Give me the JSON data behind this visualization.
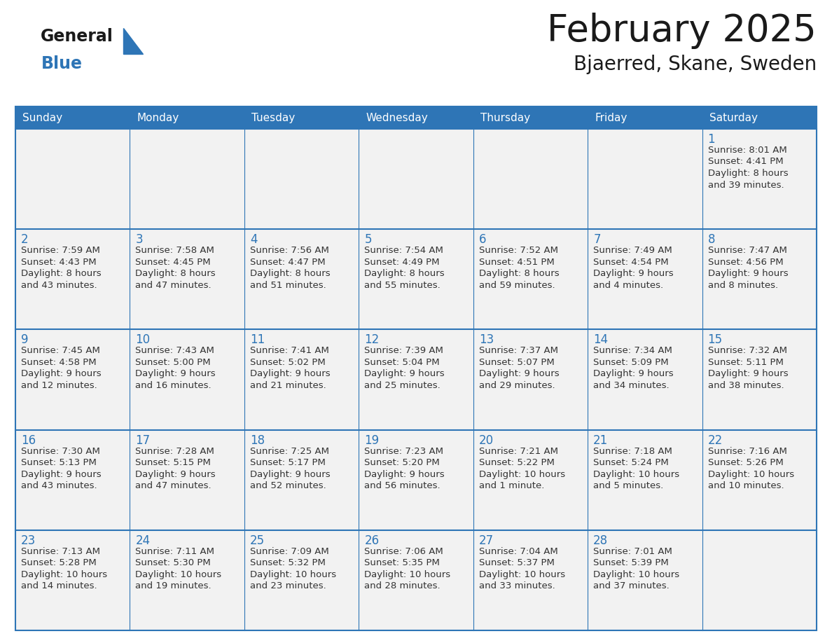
{
  "title": "February 2025",
  "subtitle": "Bjaerred, Skane, Sweden",
  "header_bg": "#2E75B6",
  "header_text_color": "#FFFFFF",
  "cell_bg": "#F2F2F2",
  "border_color": "#2E75B6",
  "day_names": [
    "Sunday",
    "Monday",
    "Tuesday",
    "Wednesday",
    "Thursday",
    "Friday",
    "Saturday"
  ],
  "title_color": "#1A1A1A",
  "subtitle_color": "#1A1A1A",
  "day_number_color": "#2E75B6",
  "cell_text_color": "#333333",
  "logo_general_color": "#1A1A1A",
  "logo_blue_color": "#2E75B6",
  "days": [
    {
      "day": 1,
      "col": 6,
      "row": 0,
      "sunrise": "8:01 AM",
      "sunset": "4:41 PM",
      "daylight_l1": "Daylight: 8 hours",
      "daylight_l2": "and 39 minutes."
    },
    {
      "day": 2,
      "col": 0,
      "row": 1,
      "sunrise": "7:59 AM",
      "sunset": "4:43 PM",
      "daylight_l1": "Daylight: 8 hours",
      "daylight_l2": "and 43 minutes."
    },
    {
      "day": 3,
      "col": 1,
      "row": 1,
      "sunrise": "7:58 AM",
      "sunset": "4:45 PM",
      "daylight_l1": "Daylight: 8 hours",
      "daylight_l2": "and 47 minutes."
    },
    {
      "day": 4,
      "col": 2,
      "row": 1,
      "sunrise": "7:56 AM",
      "sunset": "4:47 PM",
      "daylight_l1": "Daylight: 8 hours",
      "daylight_l2": "and 51 minutes."
    },
    {
      "day": 5,
      "col": 3,
      "row": 1,
      "sunrise": "7:54 AM",
      "sunset": "4:49 PM",
      "daylight_l1": "Daylight: 8 hours",
      "daylight_l2": "and 55 minutes."
    },
    {
      "day": 6,
      "col": 4,
      "row": 1,
      "sunrise": "7:52 AM",
      "sunset": "4:51 PM",
      "daylight_l1": "Daylight: 8 hours",
      "daylight_l2": "and 59 minutes."
    },
    {
      "day": 7,
      "col": 5,
      "row": 1,
      "sunrise": "7:49 AM",
      "sunset": "4:54 PM",
      "daylight_l1": "Daylight: 9 hours",
      "daylight_l2": "and 4 minutes."
    },
    {
      "day": 8,
      "col": 6,
      "row": 1,
      "sunrise": "7:47 AM",
      "sunset": "4:56 PM",
      "daylight_l1": "Daylight: 9 hours",
      "daylight_l2": "and 8 minutes."
    },
    {
      "day": 9,
      "col": 0,
      "row": 2,
      "sunrise": "7:45 AM",
      "sunset": "4:58 PM",
      "daylight_l1": "Daylight: 9 hours",
      "daylight_l2": "and 12 minutes."
    },
    {
      "day": 10,
      "col": 1,
      "row": 2,
      "sunrise": "7:43 AM",
      "sunset": "5:00 PM",
      "daylight_l1": "Daylight: 9 hours",
      "daylight_l2": "and 16 minutes."
    },
    {
      "day": 11,
      "col": 2,
      "row": 2,
      "sunrise": "7:41 AM",
      "sunset": "5:02 PM",
      "daylight_l1": "Daylight: 9 hours",
      "daylight_l2": "and 21 minutes."
    },
    {
      "day": 12,
      "col": 3,
      "row": 2,
      "sunrise": "7:39 AM",
      "sunset": "5:04 PM",
      "daylight_l1": "Daylight: 9 hours",
      "daylight_l2": "and 25 minutes."
    },
    {
      "day": 13,
      "col": 4,
      "row": 2,
      "sunrise": "7:37 AM",
      "sunset": "5:07 PM",
      "daylight_l1": "Daylight: 9 hours",
      "daylight_l2": "and 29 minutes."
    },
    {
      "day": 14,
      "col": 5,
      "row": 2,
      "sunrise": "7:34 AM",
      "sunset": "5:09 PM",
      "daylight_l1": "Daylight: 9 hours",
      "daylight_l2": "and 34 minutes."
    },
    {
      "day": 15,
      "col": 6,
      "row": 2,
      "sunrise": "7:32 AM",
      "sunset": "5:11 PM",
      "daylight_l1": "Daylight: 9 hours",
      "daylight_l2": "and 38 minutes."
    },
    {
      "day": 16,
      "col": 0,
      "row": 3,
      "sunrise": "7:30 AM",
      "sunset": "5:13 PM",
      "daylight_l1": "Daylight: 9 hours",
      "daylight_l2": "and 43 minutes."
    },
    {
      "day": 17,
      "col": 1,
      "row": 3,
      "sunrise": "7:28 AM",
      "sunset": "5:15 PM",
      "daylight_l1": "Daylight: 9 hours",
      "daylight_l2": "and 47 minutes."
    },
    {
      "day": 18,
      "col": 2,
      "row": 3,
      "sunrise": "7:25 AM",
      "sunset": "5:17 PM",
      "daylight_l1": "Daylight: 9 hours",
      "daylight_l2": "and 52 minutes."
    },
    {
      "day": 19,
      "col": 3,
      "row": 3,
      "sunrise": "7:23 AM",
      "sunset": "5:20 PM",
      "daylight_l1": "Daylight: 9 hours",
      "daylight_l2": "and 56 minutes."
    },
    {
      "day": 20,
      "col": 4,
      "row": 3,
      "sunrise": "7:21 AM",
      "sunset": "5:22 PM",
      "daylight_l1": "Daylight: 10 hours",
      "daylight_l2": "and 1 minute."
    },
    {
      "day": 21,
      "col": 5,
      "row": 3,
      "sunrise": "7:18 AM",
      "sunset": "5:24 PM",
      "daylight_l1": "Daylight: 10 hours",
      "daylight_l2": "and 5 minutes."
    },
    {
      "day": 22,
      "col": 6,
      "row": 3,
      "sunrise": "7:16 AM",
      "sunset": "5:26 PM",
      "daylight_l1": "Daylight: 10 hours",
      "daylight_l2": "and 10 minutes."
    },
    {
      "day": 23,
      "col": 0,
      "row": 4,
      "sunrise": "7:13 AM",
      "sunset": "5:28 PM",
      "daylight_l1": "Daylight: 10 hours",
      "daylight_l2": "and 14 minutes."
    },
    {
      "day": 24,
      "col": 1,
      "row": 4,
      "sunrise": "7:11 AM",
      "sunset": "5:30 PM",
      "daylight_l1": "Daylight: 10 hours",
      "daylight_l2": "and 19 minutes."
    },
    {
      "day": 25,
      "col": 2,
      "row": 4,
      "sunrise": "7:09 AM",
      "sunset": "5:32 PM",
      "daylight_l1": "Daylight: 10 hours",
      "daylight_l2": "and 23 minutes."
    },
    {
      "day": 26,
      "col": 3,
      "row": 4,
      "sunrise": "7:06 AM",
      "sunset": "5:35 PM",
      "daylight_l1": "Daylight: 10 hours",
      "daylight_l2": "and 28 minutes."
    },
    {
      "day": 27,
      "col": 4,
      "row": 4,
      "sunrise": "7:04 AM",
      "sunset": "5:37 PM",
      "daylight_l1": "Daylight: 10 hours",
      "daylight_l2": "and 33 minutes."
    },
    {
      "day": 28,
      "col": 5,
      "row": 4,
      "sunrise": "7:01 AM",
      "sunset": "5:39 PM",
      "daylight_l1": "Daylight: 10 hours",
      "daylight_l2": "and 37 minutes."
    }
  ]
}
